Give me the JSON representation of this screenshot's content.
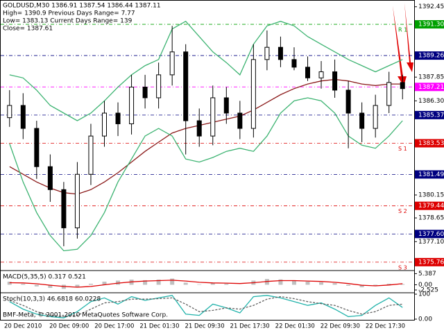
{
  "chart_data": [
    {
      "type": "candlestick",
      "info": [
        "GOLDUSD,M30  1386.91 1387.54 1386.44 1387.11",
        "High= 1390.9    Previous Days Range= 7.77",
        "Low= 1383.13    Current Days Range= 139",
        "Close= 1387.61"
      ],
      "open": [
        1385.2,
        1386.0,
        1384.5,
        1382.0,
        1380.5,
        1378.0,
        1381.5,
        1384.0,
        1385.5,
        1384.8,
        1387.2,
        1386.5,
        1388.0,
        1389.5,
        1385.0,
        1384.0,
        1386.5,
        1385.5,
        1384.5,
        1389.0,
        1389.8,
        1389.0,
        1388.5,
        1387.8,
        1388.2,
        1387.0,
        1385.5,
        1384.5,
        1386.0,
        1387.5
      ],
      "high": [
        1387.0,
        1386.8,
        1385.0,
        1382.8,
        1381.0,
        1382.3,
        1384.8,
        1386.3,
        1386.2,
        1388.0,
        1388.0,
        1388.8,
        1391.2,
        1390.0,
        1385.8,
        1387.3,
        1387.2,
        1386.3,
        1390.0,
        1390.9,
        1390.5,
        1389.8,
        1389.2,
        1388.9,
        1389.0,
        1387.6,
        1386.2,
        1386.7,
        1388.2,
        1388.0
      ],
      "low": [
        1384.6,
        1383.8,
        1381.2,
        1379.7,
        1376.8,
        1377.3,
        1380.8,
        1383.3,
        1384.0,
        1384.1,
        1385.8,
        1385.8,
        1387.3,
        1382.8,
        1383.3,
        1383.4,
        1384.8,
        1383.8,
        1383.9,
        1388.3,
        1388.5,
        1388.3,
        1387.6,
        1387.1,
        1386.5,
        1383.2,
        1383.6,
        1383.9,
        1385.5,
        1386.4
      ],
      "close": [
        1386.0,
        1384.5,
        1382.0,
        1380.5,
        1378.0,
        1381.5,
        1384.0,
        1385.5,
        1384.8,
        1387.2,
        1386.5,
        1388.0,
        1389.5,
        1385.0,
        1384.0,
        1386.5,
        1385.5,
        1384.5,
        1389.0,
        1389.8,
        1389.0,
        1388.5,
        1387.8,
        1388.2,
        1387.0,
        1385.5,
        1384.5,
        1386.0,
        1387.5,
        1387.1
      ],
      "series": [
        {
          "color": "#8b1a1a",
          "values": [
            1382.0,
            1381.5,
            1381.0,
            1380.6,
            1380.3,
            1380.2,
            1380.5,
            1381.0,
            1381.6,
            1382.3,
            1383.0,
            1383.6,
            1384.2,
            1384.5,
            1384.7,
            1384.9,
            1385.1,
            1385.3,
            1385.7,
            1386.2,
            1386.7,
            1387.1,
            1387.4,
            1387.6,
            1387.7,
            1387.6,
            1387.4,
            1387.3,
            1387.4,
            1387.4
          ]
        },
        {
          "color": "#3cb371",
          "values": [
            1388.0,
            1387.8,
            1387.0,
            1386.0,
            1385.5,
            1385.0,
            1385.5,
            1386.3,
            1387.2,
            1388.0,
            1388.6,
            1389.0,
            1391.0,
            1391.5,
            1390.5,
            1389.5,
            1388.8,
            1388.0,
            1390.0,
            1391.2,
            1391.5,
            1391.2,
            1390.5,
            1390.0,
            1389.5,
            1389.0,
            1388.6,
            1388.2,
            1388.6,
            1389.0
          ]
        },
        {
          "color": "#3cb371",
          "values": [
            1383.5,
            1381.0,
            1379.0,
            1377.5,
            1376.5,
            1376.6,
            1377.5,
            1379.0,
            1381.0,
            1382.5,
            1384.0,
            1384.5,
            1384.0,
            1382.5,
            1382.3,
            1382.6,
            1383.0,
            1383.2,
            1383.0,
            1384.0,
            1385.5,
            1386.3,
            1386.5,
            1386.3,
            1385.5,
            1384.0,
            1383.4,
            1383.2,
            1384.0,
            1385.0
          ]
        }
      ],
      "levels": [
        {
          "value": 1391.3,
          "label": "1391.30",
          "color": "#00a000",
          "tag": "R 1"
        },
        {
          "value": 1389.26,
          "color": "#000080"
        },
        {
          "value": 1387.21,
          "color": "#ff00ff"
        },
        {
          "value": 1385.37,
          "color": "#000080"
        },
        {
          "value": 1383.53,
          "color": "#dd0000",
          "tag": "S 1"
        },
        {
          "value": 1381.49,
          "color": "#000080"
        },
        {
          "value": 1379.44,
          "color": "#dd0000",
          "tag": "S 2"
        },
        {
          "value": 1377.6,
          "label": "1377.60",
          "color": "#000080"
        },
        {
          "value": 1375.76,
          "color": "#dd0000",
          "tag": "S 3"
        }
      ],
      "ylim": [
        1375.3,
        1392.8
      ],
      "yticks": [
        1392.45,
        {
          "value": 1387.85,
          "label": "1387.85"
        },
        {
          "value": 1386.3,
          "label": "1386.30"
        },
        1380.15,
        1378.65,
        {
          "value": 1377.1,
          "label": "1377.10"
        }
      ],
      "xlabels": [
        "20 Dec 2010",
        "20 Dec 09:00",
        "20 Dec 17:00",
        "21 Dec 01:30",
        "21 Dec 09:30",
        "21 Dec 17:30",
        "22 Dec 01:30",
        "22 Dec 09:30",
        "22 Dec 17:30"
      ]
    },
    {
      "type": "macd",
      "title": "MACD(5,35,5) 0.317 0.521",
      "values": [
        1.5,
        0.5,
        -0.8,
        -1.5,
        -2.0,
        -1.0,
        0.5,
        1.5,
        2.0,
        2.5,
        2.2,
        2.5,
        3.0,
        1.0,
        0.2,
        0.8,
        0.5,
        0.0,
        2.0,
        2.8,
        2.6,
        2.0,
        1.5,
        1.2,
        0.8,
        -0.5,
        -1.2,
        -0.5,
        0.5,
        0.317
      ],
      "signal": [
        1.0,
        0.9,
        0.5,
        -0.2,
        -0.8,
        -1.2,
        -0.8,
        0.0,
        0.8,
        1.4,
        1.8,
        2.0,
        2.2,
        1.8,
        1.2,
        0.9,
        0.8,
        0.6,
        1.0,
        1.6,
        2.0,
        2.0,
        1.8,
        1.6,
        1.2,
        0.6,
        -0.2,
        -0.5,
        -0.1,
        0.521
      ],
      "color": "#c0c0c0",
      "signal_color": "#dd0000",
      "ylim": [
        -3.2,
        6.2
      ],
      "yticks": [
        5.387,
        {
          "value": 0,
          "label": "0.00"
        },
        -2.525
      ]
    },
    {
      "type": "stoch",
      "title": "Stoch(10,3,3) 46.6818 60.0228",
      "footer": "BMF-Meta, © 2001-2010 MetaQuotes Software Corp.",
      "values": [
        70,
        40,
        20,
        10,
        5,
        30,
        70,
        85,
        60,
        90,
        75,
        85,
        95,
        20,
        15,
        60,
        45,
        25,
        90,
        95,
        85,
        70,
        55,
        65,
        40,
        10,
        15,
        55,
        85,
        46.6818
      ],
      "signal": [
        75,
        55,
        30,
        15,
        10,
        15,
        40,
        65,
        70,
        80,
        80,
        82,
        85,
        60,
        30,
        35,
        45,
        40,
        55,
        80,
        90,
        82,
        70,
        62,
        55,
        35,
        20,
        30,
        55,
        60.0228
      ],
      "color": "#20b2aa",
      "signal_color": "#606060",
      "ylim": [
        0,
        100
      ],
      "yticks": [
        100,
        {
          "value": 0,
          "label": "0.00"
        }
      ]
    }
  ]
}
